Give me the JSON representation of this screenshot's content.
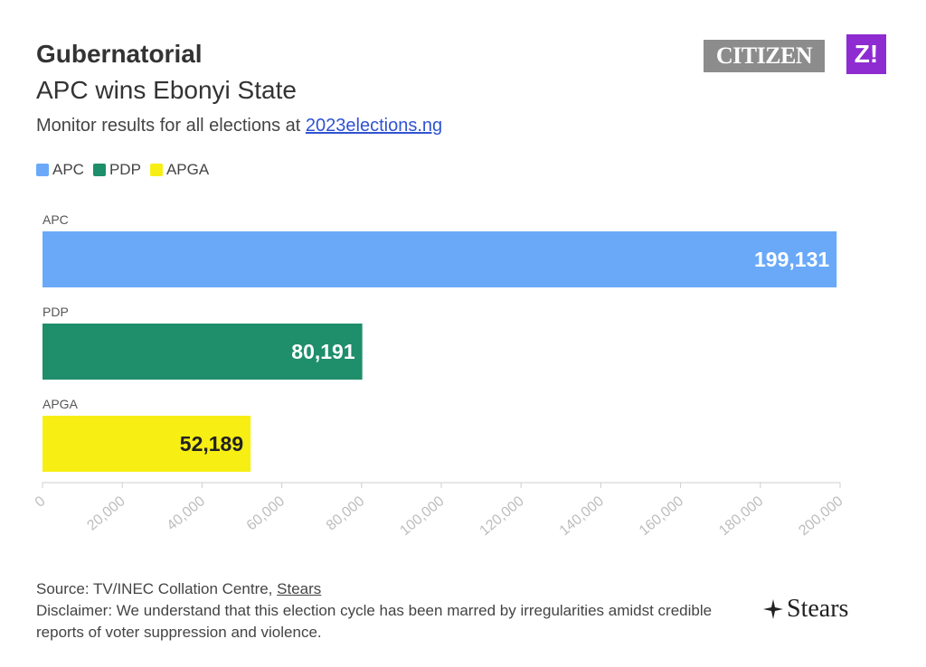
{
  "header": {
    "title": "Gubernatorial",
    "subtitle": "APC wins Ebonyi State",
    "monitor_prefix": "Monitor results for all elections at ",
    "monitor_link": "2023elections.ng"
  },
  "logos": {
    "citizen": "CITIZEN",
    "z": "Z!",
    "stears": "Stears"
  },
  "legend": [
    {
      "label": "APC",
      "color": "#6aa9f8"
    },
    {
      "label": "PDP",
      "color": "#1f8e6a"
    },
    {
      "label": "APGA",
      "color": "#f7ee14"
    }
  ],
  "footer": {
    "source_prefix": "Source: TV/INEC Collation Centre, ",
    "source_link": "Stears",
    "disclaimer": "Disclaimer: We understand that this election cycle has been marred by irregularities amidst credible reports of voter suppression and violence."
  },
  "chart_data": {
    "type": "bar",
    "orientation": "horizontal",
    "categories": [
      "APC",
      "PDP",
      "APGA"
    ],
    "values": [
      199131,
      80191,
      52189
    ],
    "data_labels": [
      "199,131",
      "80,191",
      "52,189"
    ],
    "colors": [
      "#6aa9f8",
      "#1f8e6a",
      "#f7ee14"
    ],
    "label_colors": [
      "#ffffff",
      "#ffffff",
      "#222222"
    ],
    "xlim": [
      0,
      200000
    ],
    "xticks": [
      0,
      20000,
      40000,
      60000,
      80000,
      100000,
      120000,
      140000,
      160000,
      180000,
      200000
    ],
    "xtick_labels": [
      "0",
      "20,000",
      "40,000",
      "60,000",
      "80,000",
      "100,000",
      "120,000",
      "140,000",
      "160,000",
      "180,000",
      "200,000"
    ],
    "title": "Gubernatorial",
    "subtitle": "APC wins Ebonyi State",
    "legend_position": "top-left"
  }
}
